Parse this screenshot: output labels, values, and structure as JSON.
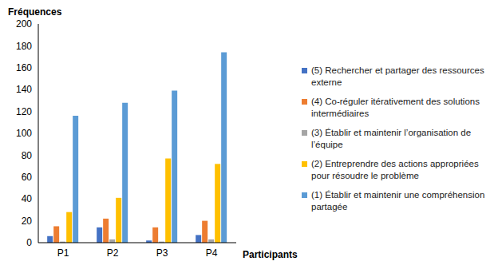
{
  "chart_data": {
    "type": "bar",
    "x_label": "Participants",
    "y_label": "Fréquences",
    "categories": [
      "P1",
      "P2",
      "P3",
      "P4"
    ],
    "series": [
      {
        "name": "(5) Rechercher et partager des ressources externe",
        "color": "#4472c4",
        "values": [
          6,
          14,
          2,
          7
        ]
      },
      {
        "name": "(4) Co-réguler itérativement des solutions intermédiaires",
        "color": "#ed7d31",
        "values": [
          15,
          22,
          14,
          20
        ]
      },
      {
        "name": "(3) Établir et maintenir l’organisation de l’équipe",
        "color": "#a5a5a5",
        "values": [
          1,
          3,
          1,
          3
        ]
      },
      {
        "name": "(2) Entreprendre des actions appropriées pour résoudre le problème",
        "color": "#ffc000",
        "values": [
          28,
          41,
          77,
          72
        ]
      },
      {
        "name": "(1) Établir et maintenir une compréhension partagée",
        "color": "#5b9bd5",
        "values": [
          116,
          128,
          139,
          174
        ]
      }
    ],
    "ylim": [
      0,
      200
    ],
    "yticks": [
      0,
      20,
      40,
      60,
      80,
      100,
      120,
      140,
      160,
      180,
      200
    ],
    "grid": false,
    "legend": "right"
  }
}
